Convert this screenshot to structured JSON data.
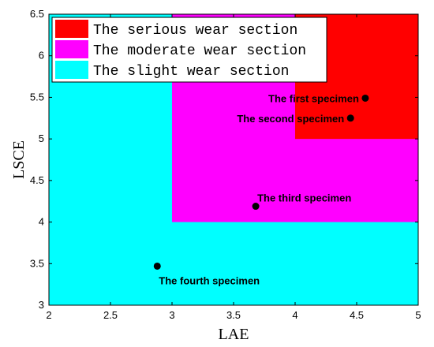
{
  "chart_data": {
    "type": "area",
    "xlabel": "LAE",
    "ylabel": "LSCE",
    "xlim": [
      2,
      5
    ],
    "ylim": [
      3,
      6.5
    ],
    "xticks": [
      "2",
      "2.5",
      "3",
      "3.5",
      "4",
      "4.5",
      "5"
    ],
    "yticks": [
      "3",
      "3.5",
      "4",
      "4.5",
      "5",
      "5.5",
      "6",
      "6.5"
    ],
    "grid": false,
    "legend_position": "top-left",
    "regions": [
      {
        "name": "The slight wear section",
        "color": "#00ffff",
        "x": [
          2,
          5
        ],
        "y": [
          3,
          6.5
        ]
      },
      {
        "name": "The moderate wear section",
        "color": "#ff00ff",
        "x": [
          3,
          5
        ],
        "y": [
          4,
          6.5
        ]
      },
      {
        "name": "The serious wear section",
        "color": "#ff0000",
        "x": [
          4,
          5
        ],
        "y": [
          5,
          6.5
        ]
      }
    ],
    "points": [
      {
        "label": "The first specimen",
        "x": 4.57,
        "y": 5.49,
        "label_side": "left"
      },
      {
        "label": "The second specimen",
        "x": 4.45,
        "y": 5.25,
        "label_side": "left"
      },
      {
        "label": "The third specimen",
        "x": 3.68,
        "y": 4.19,
        "label_side": "above-right"
      },
      {
        "label": "The fourth specimen",
        "x": 2.88,
        "y": 3.47,
        "label_side": "below"
      }
    ]
  }
}
